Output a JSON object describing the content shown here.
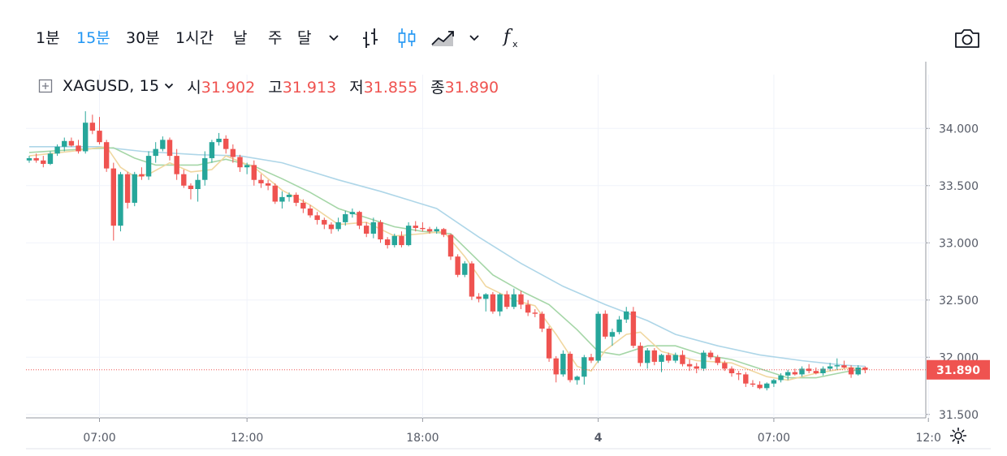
{
  "toolbar": {
    "intervals": [
      "1분",
      "15분",
      "30분",
      "1시간",
      "날",
      "주",
      "달"
    ],
    "active_interval": "15분",
    "icons": [
      "chevron-down-icon",
      "bar-chart-style-icon",
      "candle-chart-style-icon",
      "area-chart-style-icon",
      "chevron-down-icon",
      "indicators-fx-icon",
      "camera-screenshot-icon"
    ]
  },
  "legend": {
    "symbol": "XAGUSD, 15",
    "open_label": "시",
    "open": "31.902",
    "high_label": "고",
    "high": "31.913",
    "low_label": "저",
    "low": "31.855",
    "close_label": "종",
    "close": "31.890"
  },
  "colors": {
    "up": "#26a69a",
    "down": "#ef5350",
    "ma_fast": "#f0d7a0",
    "ma_mid": "#a5d6a7",
    "ma_slow": "#aed6e8",
    "active": "#2196f3"
  },
  "chart_data": {
    "type": "candlestick",
    "symbol": "XAGUSD",
    "interval": "15",
    "x_ticks": [
      "07:00",
      "12:00",
      "18:00",
      "4",
      "07:00",
      "12:0"
    ],
    "y_ticks": [
      "34.000",
      "33.500",
      "33.000",
      "32.500",
      "32.000",
      "31.500"
    ],
    "ylim": [
      31.47,
      34.47
    ],
    "last_price_label": "31.890",
    "last_price": 31.89,
    "grid": true,
    "candles": [
      [
        33.72,
        33.76,
        33.7,
        33.74
      ],
      [
        33.74,
        33.78,
        33.7,
        33.72
      ],
      [
        33.72,
        33.76,
        33.66,
        33.69
      ],
      [
        33.69,
        33.8,
        33.68,
        33.78
      ],
      [
        33.78,
        33.86,
        33.76,
        33.84
      ],
      [
        33.84,
        33.92,
        33.8,
        33.89
      ],
      [
        33.89,
        33.92,
        33.84,
        33.85
      ],
      [
        33.85,
        33.9,
        33.78,
        33.8
      ],
      [
        33.8,
        34.15,
        33.78,
        34.05
      ],
      [
        34.05,
        34.12,
        33.95,
        33.98
      ],
      [
        33.98,
        34.1,
        33.86,
        33.88
      ],
      [
        33.88,
        33.9,
        33.62,
        33.65
      ],
      [
        33.65,
        33.7,
        33.02,
        33.15
      ],
      [
        33.15,
        33.62,
        33.1,
        33.6
      ],
      [
        33.6,
        33.62,
        33.3,
        33.35
      ],
      [
        33.35,
        33.62,
        33.32,
        33.6
      ],
      [
        33.6,
        33.66,
        33.55,
        33.58
      ],
      [
        33.58,
        33.8,
        33.55,
        33.76
      ],
      [
        33.76,
        33.88,
        33.7,
        33.82
      ],
      [
        33.82,
        33.93,
        33.8,
        33.9
      ],
      [
        33.9,
        33.92,
        33.72,
        33.76
      ],
      [
        33.76,
        33.82,
        33.55,
        33.6
      ],
      [
        33.6,
        33.64,
        33.48,
        33.5
      ],
      [
        33.5,
        33.52,
        33.38,
        33.47
      ],
      [
        33.47,
        33.6,
        33.36,
        33.55
      ],
      [
        33.55,
        33.8,
        33.5,
        33.74
      ],
      [
        33.74,
        33.9,
        33.7,
        33.88
      ],
      [
        33.88,
        33.96,
        33.85,
        33.91
      ],
      [
        33.91,
        33.94,
        33.78,
        33.82
      ],
      [
        33.82,
        33.86,
        33.7,
        33.75
      ],
      [
        33.75,
        33.77,
        33.62,
        33.66
      ],
      [
        33.66,
        33.7,
        33.6,
        33.68
      ],
      [
        33.68,
        33.72,
        33.5,
        33.55
      ],
      [
        33.55,
        33.6,
        33.48,
        33.52
      ],
      [
        33.52,
        33.55,
        33.46,
        33.5
      ],
      [
        33.5,
        33.52,
        33.34,
        33.36
      ],
      [
        33.36,
        33.45,
        33.3,
        33.4
      ],
      [
        33.4,
        33.44,
        33.36,
        33.42
      ],
      [
        33.42,
        33.44,
        33.32,
        33.35
      ],
      [
        33.35,
        33.38,
        33.26,
        33.3
      ],
      [
        33.3,
        33.33,
        33.22,
        33.24
      ],
      [
        33.24,
        33.27,
        33.16,
        33.2
      ],
      [
        33.2,
        33.22,
        33.12,
        33.16
      ],
      [
        33.16,
        33.18,
        33.08,
        33.12
      ],
      [
        33.12,
        33.22,
        33.1,
        33.18
      ],
      [
        33.18,
        33.28,
        33.15,
        33.25
      ],
      [
        33.25,
        33.3,
        33.22,
        33.27
      ],
      [
        33.27,
        33.28,
        33.12,
        33.15
      ],
      [
        33.15,
        33.18,
        33.05,
        33.08
      ],
      [
        33.08,
        33.22,
        33.04,
        33.18
      ],
      [
        33.18,
        33.2,
        33.0,
        33.03
      ],
      [
        33.03,
        33.05,
        32.95,
        32.98
      ],
      [
        32.98,
        33.08,
        32.96,
        33.06
      ],
      [
        33.06,
        33.1,
        32.96,
        32.98
      ],
      [
        32.98,
        33.18,
        32.97,
        33.15
      ],
      [
        33.15,
        33.19,
        33.1,
        33.13
      ],
      [
        33.13,
        33.18,
        33.1,
        33.12
      ],
      [
        33.12,
        33.14,
        33.08,
        33.1
      ],
      [
        33.1,
        33.14,
        33.08,
        33.12
      ],
      [
        33.12,
        33.13,
        33.05,
        33.07
      ],
      [
        33.07,
        33.08,
        32.85,
        32.88
      ],
      [
        32.88,
        32.9,
        32.7,
        32.72
      ],
      [
        32.72,
        32.84,
        32.7,
        32.82
      ],
      [
        32.82,
        32.84,
        32.5,
        32.53
      ],
      [
        32.53,
        32.56,
        32.48,
        32.51
      ],
      [
        32.51,
        32.56,
        32.4,
        32.55
      ],
      [
        32.55,
        32.57,
        32.38,
        32.4
      ],
      [
        32.4,
        32.56,
        32.36,
        32.55
      ],
      [
        32.55,
        32.58,
        32.42,
        32.44
      ],
      [
        32.44,
        32.6,
        32.42,
        32.55
      ],
      [
        32.55,
        32.58,
        32.42,
        32.46
      ],
      [
        32.46,
        32.5,
        32.36,
        32.39
      ],
      [
        32.39,
        32.42,
        32.35,
        32.38
      ],
      [
        32.38,
        32.4,
        32.22,
        32.25
      ],
      [
        32.25,
        32.27,
        31.96,
        31.99
      ],
      [
        31.99,
        32.01,
        31.78,
        31.85
      ],
      [
        31.85,
        32.06,
        31.83,
        32.03
      ],
      [
        32.03,
        32.05,
        31.78,
        31.8
      ],
      [
        31.8,
        31.84,
        31.76,
        31.83
      ],
      [
        31.83,
        32.02,
        31.76,
        32.0
      ],
      [
        32.0,
        32.03,
        31.95,
        31.97
      ],
      [
        31.97,
        32.4,
        31.95,
        32.38
      ],
      [
        32.38,
        32.41,
        32.16,
        32.18
      ],
      [
        32.18,
        32.25,
        32.1,
        32.22
      ],
      [
        32.22,
        32.36,
        32.2,
        32.33
      ],
      [
        32.33,
        32.44,
        32.3,
        32.4
      ],
      [
        32.4,
        32.44,
        32.08,
        32.1
      ],
      [
        32.1,
        32.13,
        31.92,
        31.95
      ],
      [
        31.95,
        32.08,
        31.9,
        32.06
      ],
      [
        32.06,
        32.08,
        31.93,
        31.96
      ],
      [
        31.96,
        32.03,
        31.87,
        32.02
      ],
      [
        32.02,
        32.04,
        31.95,
        31.97
      ],
      [
        31.97,
        32.04,
        31.95,
        32.02
      ],
      [
        32.02,
        32.06,
        31.92,
        31.94
      ],
      [
        31.94,
        31.98,
        31.88,
        31.92
      ],
      [
        31.92,
        31.95,
        31.86,
        31.9
      ],
      [
        31.9,
        32.06,
        31.88,
        32.04
      ],
      [
        32.04,
        32.06,
        31.98,
        32.0
      ],
      [
        32.0,
        32.02,
        31.93,
        31.95
      ],
      [
        31.95,
        31.97,
        31.88,
        31.9
      ],
      [
        31.9,
        31.92,
        31.83,
        31.86
      ],
      [
        31.86,
        31.88,
        31.8,
        31.85
      ],
      [
        31.85,
        31.87,
        31.74,
        31.77
      ],
      [
        31.77,
        31.8,
        31.74,
        31.76
      ],
      [
        31.76,
        31.79,
        31.72,
        31.73
      ],
      [
        31.73,
        31.78,
        31.71,
        31.77
      ],
      [
        31.77,
        31.81,
        31.74,
        31.8
      ],
      [
        31.8,
        31.86,
        31.78,
        31.84
      ],
      [
        31.84,
        31.89,
        31.8,
        31.87
      ],
      [
        31.87,
        31.9,
        31.84,
        31.85
      ],
      [
        31.85,
        31.92,
        31.83,
        31.9
      ],
      [
        31.9,
        31.94,
        31.86,
        31.88
      ],
      [
        31.88,
        31.91,
        31.85,
        31.86
      ],
      [
        31.86,
        31.92,
        31.84,
        31.9
      ],
      [
        31.9,
        31.95,
        31.88,
        31.92
      ],
      [
        31.92,
        31.99,
        31.89,
        31.93
      ],
      [
        31.93,
        31.97,
        31.9,
        31.91
      ],
      [
        31.91,
        31.93,
        31.82,
        31.85
      ],
      [
        31.85,
        31.93,
        31.84,
        31.91
      ],
      [
        31.91,
        31.92,
        31.86,
        31.89
      ]
    ],
    "ma_fast": [
      [
        0,
        33.76
      ],
      [
        6,
        33.8
      ],
      [
        11,
        33.84
      ],
      [
        13,
        33.66
      ],
      [
        15,
        33.58
      ],
      [
        17,
        33.6
      ],
      [
        20,
        33.7
      ],
      [
        23,
        33.62
      ],
      [
        26,
        33.64
      ],
      [
        28,
        33.76
      ],
      [
        32,
        33.66
      ],
      [
        36,
        33.46
      ],
      [
        40,
        33.33
      ],
      [
        44,
        33.16
      ],
      [
        48,
        33.18
      ],
      [
        52,
        33.06
      ],
      [
        56,
        33.08
      ],
      [
        59,
        33.1
      ],
      [
        62,
        32.88
      ],
      [
        65,
        32.62
      ],
      [
        69,
        32.5
      ],
      [
        72,
        32.45
      ],
      [
        75,
        32.2
      ],
      [
        78,
        31.92
      ],
      [
        80,
        31.88
      ],
      [
        82,
        32.06
      ],
      [
        85,
        32.2
      ],
      [
        87,
        32.22
      ],
      [
        90,
        32.05
      ],
      [
        95,
        31.97
      ],
      [
        100,
        31.95
      ],
      [
        105,
        31.83
      ],
      [
        108,
        31.8
      ],
      [
        112,
        31.86
      ],
      [
        117,
        31.91
      ],
      [
        119,
        31.89
      ]
    ],
    "ma_mid": [
      [
        0,
        33.79
      ],
      [
        8,
        33.82
      ],
      [
        12,
        33.83
      ],
      [
        15,
        33.74
      ],
      [
        18,
        33.68
      ],
      [
        24,
        33.68
      ],
      [
        28,
        33.73
      ],
      [
        32,
        33.67
      ],
      [
        36,
        33.56
      ],
      [
        40,
        33.44
      ],
      [
        44,
        33.3
      ],
      [
        48,
        33.22
      ],
      [
        52,
        33.14
      ],
      [
        56,
        33.1
      ],
      [
        60,
        33.08
      ],
      [
        63,
        32.9
      ],
      [
        66,
        32.72
      ],
      [
        70,
        32.58
      ],
      [
        74,
        32.46
      ],
      [
        78,
        32.24
      ],
      [
        81,
        32.05
      ],
      [
        84,
        32.02
      ],
      [
        88,
        32.1
      ],
      [
        92,
        32.1
      ],
      [
        96,
        32.02
      ],
      [
        100,
        31.98
      ],
      [
        104,
        31.9
      ],
      [
        108,
        31.82
      ],
      [
        112,
        31.82
      ],
      [
        116,
        31.87
      ],
      [
        119,
        31.9
      ]
    ],
    "ma_slow": [
      [
        0,
        33.84
      ],
      [
        10,
        33.84
      ],
      [
        16,
        33.8
      ],
      [
        24,
        33.77
      ],
      [
        30,
        33.76
      ],
      [
        36,
        33.7
      ],
      [
        44,
        33.55
      ],
      [
        50,
        33.45
      ],
      [
        58,
        33.3
      ],
      [
        64,
        33.05
      ],
      [
        70,
        32.82
      ],
      [
        76,
        32.62
      ],
      [
        82,
        32.46
      ],
      [
        88,
        32.32
      ],
      [
        92,
        32.2
      ],
      [
        98,
        32.1
      ],
      [
        104,
        32.02
      ],
      [
        110,
        31.97
      ],
      [
        116,
        31.93
      ],
      [
        119,
        31.92
      ]
    ]
  }
}
